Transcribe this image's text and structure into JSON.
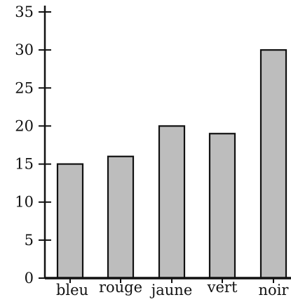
{
  "chart_data": {
    "type": "bar",
    "categories": [
      "bleu",
      "rouge",
      "jaune",
      "vert",
      "noir"
    ],
    "values": [
      15,
      16,
      20,
      19,
      30
    ],
    "ylim": [
      0,
      35
    ],
    "yticks": [
      0,
      5,
      10,
      15,
      20,
      25,
      30,
      35
    ],
    "title": "",
    "xlabel": "",
    "ylabel": "",
    "grid": false,
    "bar_color": "#bdbdbd",
    "bar_edge_color": "#111111",
    "axis_color": "#111111"
  }
}
